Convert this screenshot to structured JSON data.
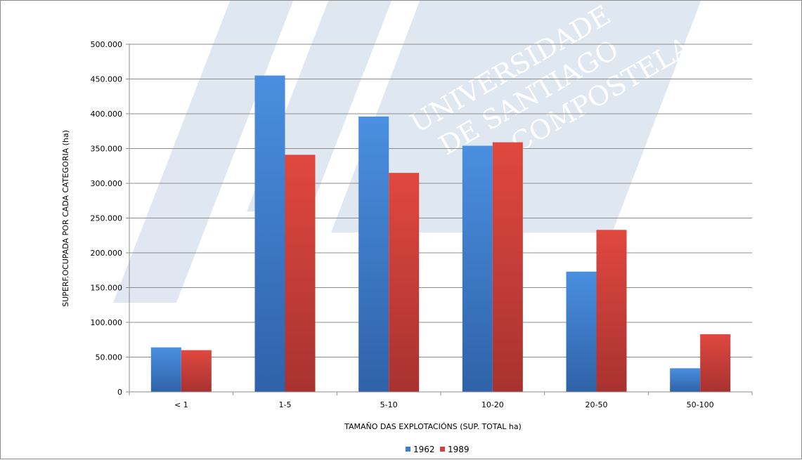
{
  "chart_data": {
    "type": "bar",
    "title": "",
    "xlabel": "TAMAÑO DAS EXPLOTACIÓNS (SUP. TOTAL ha)",
    "ylabel": "SUPERF.OCUPADA POR CADA CATEGORIA (ha)",
    "categories": [
      "< 1",
      "1-5",
      "5-10",
      "10-20",
      "20-50",
      "50-100"
    ],
    "series": [
      {
        "name": "1962",
        "values": [
          64000,
          455000,
          396000,
          354000,
          173000,
          34000
        ],
        "color": "#3f7fd0"
      },
      {
        "name": "1989",
        "values": [
          60000,
          341000,
          315000,
          359000,
          233000,
          83000
        ],
        "color": "#d4403c"
      }
    ],
    "ylim": [
      0,
      500000
    ],
    "yticks": [
      0,
      50000,
      100000,
      150000,
      200000,
      250000,
      300000,
      350000,
      400000,
      450000,
      500000
    ],
    "ytick_labels": [
      "0",
      "50.000",
      "100.000",
      "150.000",
      "200.000",
      "250.000",
      "300.000",
      "350.000",
      "400.000",
      "450.000",
      "500.000"
    ],
    "grid": true,
    "legend": "bottom-center"
  },
  "watermark": {
    "logo": "USC",
    "lines": [
      "UNIVERSIDADE",
      "DE SANTIAGO",
      "DE COMPOSTELA"
    ]
  }
}
